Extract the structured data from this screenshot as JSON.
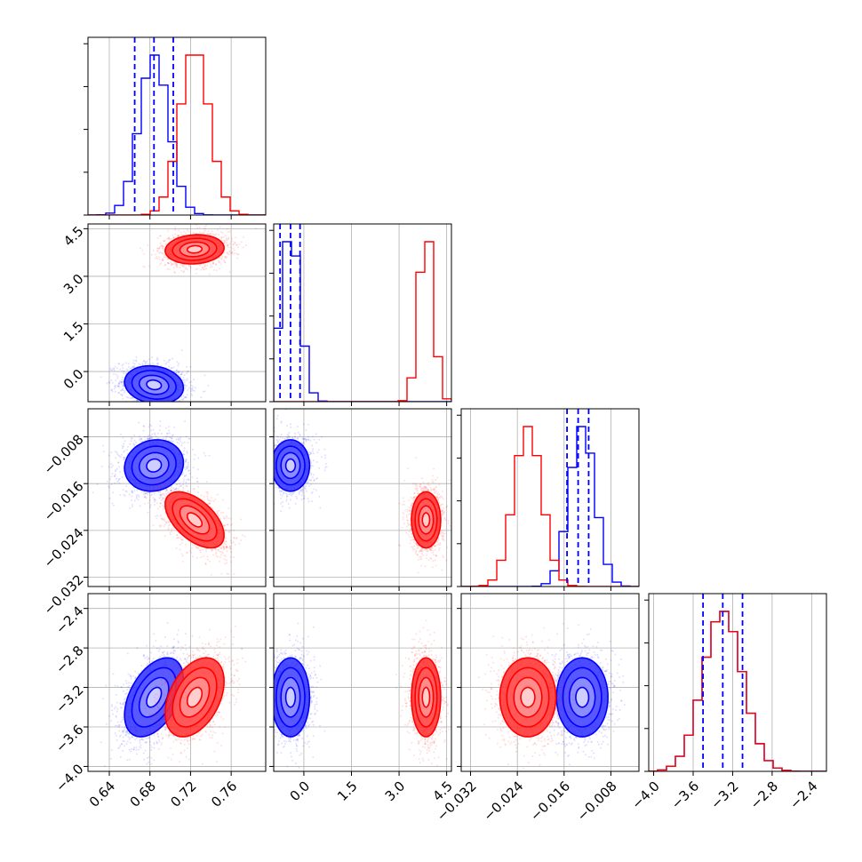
{
  "chart_data": {
    "type": "corner",
    "parameters": [
      {
        "index": 0,
        "range": [
          0.619,
          0.794
        ],
        "ticks": [
          0.64,
          0.68,
          0.72,
          0.76
        ],
        "tick_labels": [
          "0.64",
          "0.68",
          "0.72",
          "0.76"
        ]
      },
      {
        "index": 1,
        "range": [
          -0.95,
          4.65
        ],
        "ticks": [
          0.0,
          1.5,
          3.0,
          4.5
        ],
        "tick_labels": [
          "0.0",
          "1.5",
          "3.0",
          "4.5"
        ]
      },
      {
        "index": 2,
        "range": [
          -0.0336,
          -0.0032
        ],
        "ticks": [
          -0.032,
          -0.024,
          -0.016,
          -0.008
        ],
        "tick_labels": [
          "−0.032",
          "−0.024",
          "−0.016",
          "−0.008"
        ]
      },
      {
        "index": 3,
        "range": [
          -4.05,
          -2.25
        ],
        "ticks": [
          -4.0,
          -3.6,
          -3.2,
          -2.8,
          -2.4
        ],
        "tick_labels": [
          "−4.0",
          "−3.6",
          "−3.2",
          "−2.8",
          "−2.4"
        ]
      }
    ],
    "series": [
      {
        "color": "#0000ff",
        "means": [
          0.684,
          -0.42,
          -0.0129,
          -3.3
        ],
        "sigmas": [
          0.0145,
          0.3,
          0.0022,
          0.2
        ],
        "correlations": [
          [
            0,
            1,
            -0.15
          ],
          [
            0,
            2,
            0.1
          ],
          [
            0,
            3,
            0.45
          ],
          [
            1,
            2,
            0.0
          ],
          [
            1,
            3,
            0.0
          ],
          [
            2,
            3,
            0.0
          ]
        ],
        "quantiles": [
          [
            0.665,
            0.684,
            0.703
          ],
          [
            -0.75,
            -0.42,
            -0.12
          ],
          [
            -0.0155,
            -0.0136,
            -0.0118
          ],
          [
            -3.5,
            -3.3,
            -3.1
          ]
        ]
      },
      {
        "color": "#ff0000",
        "means": [
          0.724,
          3.85,
          -0.0222,
          -3.3
        ],
        "sigmas": [
          0.0145,
          0.23,
          0.0024,
          0.2
        ],
        "correlations": [
          [
            0,
            1,
            0.1
          ],
          [
            0,
            2,
            -0.55
          ],
          [
            0,
            3,
            0.4
          ],
          [
            1,
            2,
            0.0
          ],
          [
            1,
            3,
            0.0
          ],
          [
            2,
            3,
            0.0
          ]
        ]
      }
    ],
    "grid": true,
    "quantile_line_style": "dashed"
  }
}
